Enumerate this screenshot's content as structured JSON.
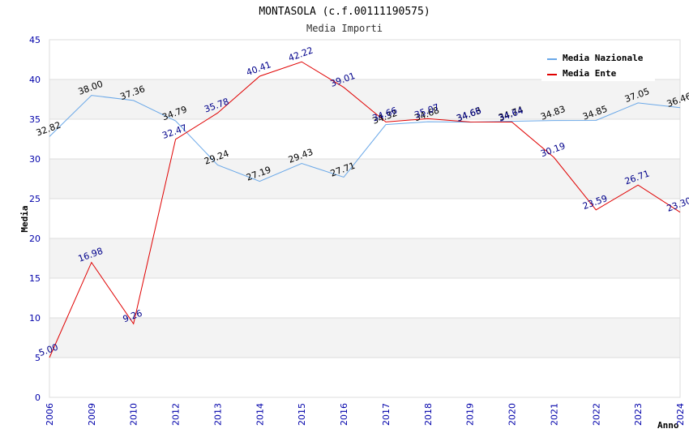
{
  "chart_data": {
    "type": "line",
    "title": "MONTASOLA (c.f.00111190575)",
    "subtitle": "Media Importi",
    "xlabel": "Anno",
    "ylabel": "Media",
    "ylim": [
      0,
      45
    ],
    "yticks": [
      0,
      5,
      10,
      15,
      20,
      25,
      30,
      35,
      40,
      45
    ],
    "categories": [
      "2006",
      "2009",
      "2010",
      "2012",
      "2013",
      "2014",
      "2015",
      "2016",
      "2017",
      "2018",
      "2019",
      "2020",
      "2021",
      "2022",
      "2023",
      "2024"
    ],
    "series": [
      {
        "name": "Media Nazionale",
        "color": "#6aa8e8",
        "label_color": "#000000",
        "values": [
          32.82,
          38.0,
          37.36,
          34.79,
          29.24,
          27.19,
          29.43,
          27.71,
          34.32,
          34.68,
          34.63,
          34.74,
          34.83,
          34.85,
          37.05,
          36.46
        ],
        "labels": [
          "32.82",
          "38.00",
          "37.36",
          "34.79",
          "29.24",
          "27.19",
          "29.43",
          "27.71",
          "34.32",
          "34.68",
          "34.63",
          "34.74",
          "34.83",
          "34.85",
          "37.05",
          "36.46"
        ]
      },
      {
        "name": "Media Ente",
        "color": "#e00000",
        "label_color": "#00008b",
        "values": [
          5.0,
          16.98,
          9.26,
          32.47,
          35.78,
          40.41,
          42.22,
          39.01,
          34.66,
          35.07,
          34.66,
          34.64,
          30.19,
          23.59,
          26.71,
          23.3
        ],
        "labels": [
          "5.00",
          "16.98",
          "9.26",
          "32.47",
          "35.78",
          "40.41",
          "42.22",
          "39.01",
          "34.66",
          "35.07",
          "34.66",
          "34.64",
          "30.19",
          "23.59",
          "26.71",
          "23.30"
        ]
      }
    ],
    "grid": true,
    "legend_position": "top-right"
  }
}
